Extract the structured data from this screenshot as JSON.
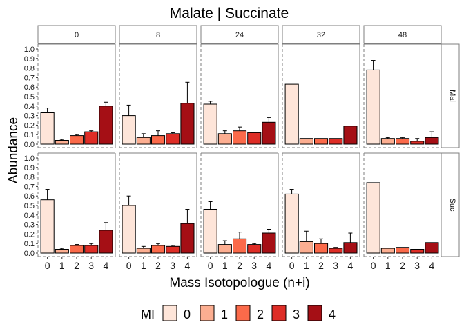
{
  "chart_data": {
    "type": "bar",
    "title": "Malate | Succinate",
    "xlabel": "Mass Isotopologue (n+i)",
    "ylabel": "Abundance",
    "legend": {
      "title": "MI",
      "placement": "bottom",
      "entries": [
        "0",
        "1",
        "2",
        "3",
        "4"
      ]
    },
    "categories": [
      "0",
      "1",
      "2",
      "3",
      "4"
    ],
    "colors": [
      "#fee5d9",
      "#fcae91",
      "#fb6a4a",
      "#de2d26",
      "#a50f15"
    ],
    "ylim": [
      0,
      1.0
    ],
    "yticks": [
      "0.0",
      "0.1",
      "0.2",
      "0.3",
      "0.4",
      "0.5",
      "0.6",
      "0.7",
      "0.8",
      "0.9",
      "1.0"
    ],
    "grid": false,
    "facet_cols": [
      "0",
      "8",
      "24",
      "32",
      "48"
    ],
    "facet_rows": [
      "Mal",
      "Suc"
    ],
    "panels": {
      "Mal": {
        "0": {
          "values": [
            0.33,
            0.04,
            0.09,
            0.13,
            0.4
          ],
          "errors": [
            0.05,
            0.01,
            0.01,
            0.01,
            0.04
          ]
        },
        "8": {
          "values": [
            0.3,
            0.07,
            0.09,
            0.11,
            0.43
          ],
          "errors": [
            0.11,
            0.04,
            0.05,
            0.01,
            0.22
          ]
        },
        "24": {
          "values": [
            0.42,
            0.11,
            0.14,
            0.12,
            0.23
          ],
          "errors": [
            0.03,
            0.03,
            0.04,
            0.0,
            0.05
          ]
        },
        "32": {
          "values": [
            0.63,
            0.06,
            0.06,
            0.06,
            0.19
          ],
          "errors": [
            0.0,
            0.0,
            0.0,
            0.0,
            0.0
          ]
        },
        "48": {
          "values": [
            0.78,
            0.06,
            0.06,
            0.03,
            0.07
          ],
          "errors": [
            0.1,
            0.01,
            0.01,
            0.03,
            0.06
          ]
        }
      },
      "Suc": {
        "0": {
          "values": [
            0.56,
            0.04,
            0.08,
            0.08,
            0.24
          ],
          "errors": [
            0.11,
            0.01,
            0.01,
            0.02,
            0.08
          ]
        },
        "8": {
          "values": [
            0.5,
            0.05,
            0.08,
            0.07,
            0.31
          ],
          "errors": [
            0.1,
            0.02,
            0.02,
            0.01,
            0.15
          ]
        },
        "24": {
          "values": [
            0.46,
            0.09,
            0.15,
            0.09,
            0.21
          ],
          "errors": [
            0.08,
            0.04,
            0.07,
            0.01,
            0.04
          ]
        },
        "32": {
          "values": [
            0.62,
            0.12,
            0.1,
            0.05,
            0.11
          ],
          "errors": [
            0.05,
            0.11,
            0.05,
            0.01,
            0.1
          ]
        },
        "48": {
          "values": [
            0.74,
            0.05,
            0.06,
            0.04,
            0.11
          ],
          "errors": [
            0.0,
            0.0,
            0.0,
            0.0,
            0.0
          ]
        }
      }
    }
  }
}
